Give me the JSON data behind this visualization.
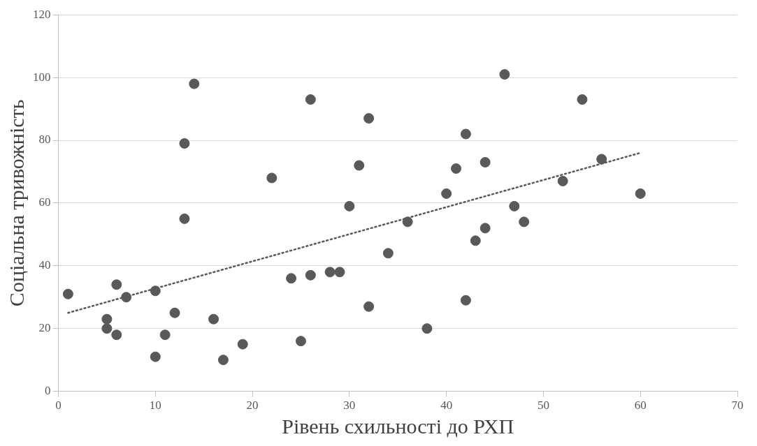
{
  "chart_data": {
    "type": "scatter",
    "xlabel": "Рівень схильності до РХП",
    "ylabel": "Соціальна тривожність",
    "xlim": [
      0,
      70
    ],
    "xticks": [
      0,
      10,
      20,
      30,
      40,
      50,
      60,
      70
    ],
    "ylim": [
      0,
      120
    ],
    "yticks": [
      0,
      20,
      40,
      60,
      80,
      100,
      120
    ],
    "grid": "y",
    "legend": false,
    "marker": "circle",
    "series": [
      {
        "color": "#595959",
        "x": [
          1,
          5,
          5,
          6,
          6,
          7,
          10,
          10,
          11,
          12,
          13,
          13,
          14,
          16,
          17,
          19,
          22,
          24,
          25,
          26,
          26,
          28,
          29,
          30,
          31,
          32,
          32,
          34,
          36,
          38,
          40,
          41,
          42,
          42,
          43,
          44,
          44,
          46,
          47,
          48,
          52,
          54,
          56,
          60
        ],
        "values": [
          31,
          23,
          20,
          34,
          18,
          30,
          32,
          11,
          18,
          25,
          79,
          55,
          98,
          23,
          10,
          15,
          68,
          36,
          16,
          93,
          37,
          38,
          38,
          59,
          72,
          87,
          27,
          44,
          54,
          20,
          63,
          71,
          82,
          29,
          48,
          73,
          52,
          101,
          59,
          54,
          67,
          93,
          74,
          63
        ]
      },
      {
        "type": "line",
        "color": "#595959",
        "line_style": "dotted",
        "marker": "none",
        "x": [
          1,
          60
        ],
        "values": [
          25,
          76
        ]
      }
    ]
  }
}
